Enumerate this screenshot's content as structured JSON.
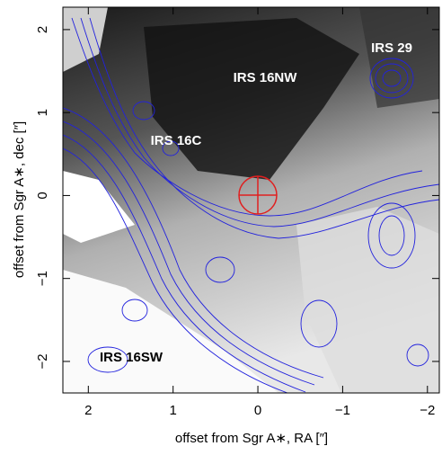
{
  "chart_data": {
    "type": "image",
    "xlabel": "offset from Sgr A∗, RA [″]",
    "ylabel": "offset from Sgr A∗, dec [″]",
    "xlim": [
      2.3,
      -2.14
    ],
    "ylim": [
      -2.38,
      2.27
    ],
    "xticks": [
      2,
      1,
      0,
      {
        "value": -1,
        "label": "−1"
      },
      {
        "value": -2,
        "label": "−2"
      }
    ],
    "yticks": [
      {
        "value": -2,
        "label": "−2"
      },
      {
        "value": -1,
        "label": "−1"
      },
      0,
      1,
      2
    ],
    "annotations": [
      "IRS 29",
      "IRS 16NW",
      "IRS 16C",
      "IRS 16SW"
    ]
  }
}
